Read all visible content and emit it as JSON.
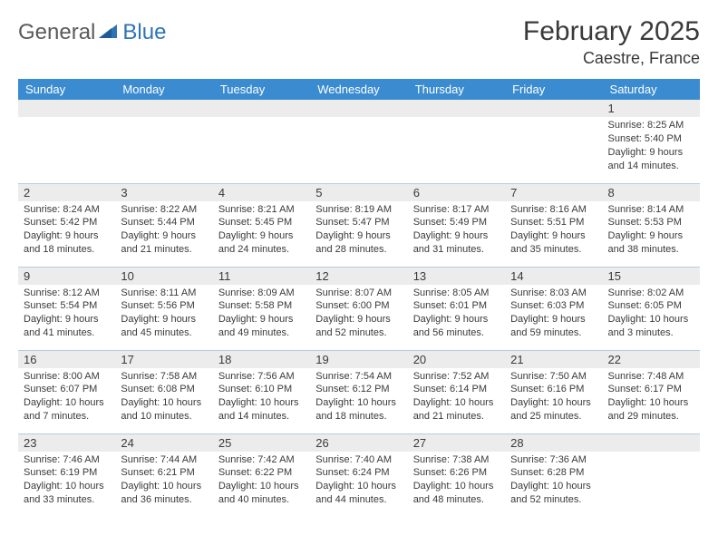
{
  "logo": {
    "part1": "General",
    "part2": "Blue"
  },
  "title": "February 2025",
  "location": "Caestre, France",
  "colors": {
    "header_bg": "#3b8bd0",
    "header_text": "#ffffff",
    "daynum_bg": "#ececec",
    "border": "#b8cce0",
    "logo_gray": "#5a5a5a",
    "logo_blue": "#2e74b5"
  },
  "weekdays": [
    "Sunday",
    "Monday",
    "Tuesday",
    "Wednesday",
    "Thursday",
    "Friday",
    "Saturday"
  ],
  "weeks": [
    [
      {
        "n": "",
        "s": ""
      },
      {
        "n": "",
        "s": ""
      },
      {
        "n": "",
        "s": ""
      },
      {
        "n": "",
        "s": ""
      },
      {
        "n": "",
        "s": ""
      },
      {
        "n": "",
        "s": ""
      },
      {
        "n": "1",
        "s": "Sunrise: 8:25 AM\nSunset: 5:40 PM\nDaylight: 9 hours and 14 minutes."
      }
    ],
    [
      {
        "n": "2",
        "s": "Sunrise: 8:24 AM\nSunset: 5:42 PM\nDaylight: 9 hours and 18 minutes."
      },
      {
        "n": "3",
        "s": "Sunrise: 8:22 AM\nSunset: 5:44 PM\nDaylight: 9 hours and 21 minutes."
      },
      {
        "n": "4",
        "s": "Sunrise: 8:21 AM\nSunset: 5:45 PM\nDaylight: 9 hours and 24 minutes."
      },
      {
        "n": "5",
        "s": "Sunrise: 8:19 AM\nSunset: 5:47 PM\nDaylight: 9 hours and 28 minutes."
      },
      {
        "n": "6",
        "s": "Sunrise: 8:17 AM\nSunset: 5:49 PM\nDaylight: 9 hours and 31 minutes."
      },
      {
        "n": "7",
        "s": "Sunrise: 8:16 AM\nSunset: 5:51 PM\nDaylight: 9 hours and 35 minutes."
      },
      {
        "n": "8",
        "s": "Sunrise: 8:14 AM\nSunset: 5:53 PM\nDaylight: 9 hours and 38 minutes."
      }
    ],
    [
      {
        "n": "9",
        "s": "Sunrise: 8:12 AM\nSunset: 5:54 PM\nDaylight: 9 hours and 41 minutes."
      },
      {
        "n": "10",
        "s": "Sunrise: 8:11 AM\nSunset: 5:56 PM\nDaylight: 9 hours and 45 minutes."
      },
      {
        "n": "11",
        "s": "Sunrise: 8:09 AM\nSunset: 5:58 PM\nDaylight: 9 hours and 49 minutes."
      },
      {
        "n": "12",
        "s": "Sunrise: 8:07 AM\nSunset: 6:00 PM\nDaylight: 9 hours and 52 minutes."
      },
      {
        "n": "13",
        "s": "Sunrise: 8:05 AM\nSunset: 6:01 PM\nDaylight: 9 hours and 56 minutes."
      },
      {
        "n": "14",
        "s": "Sunrise: 8:03 AM\nSunset: 6:03 PM\nDaylight: 9 hours and 59 minutes."
      },
      {
        "n": "15",
        "s": "Sunrise: 8:02 AM\nSunset: 6:05 PM\nDaylight: 10 hours and 3 minutes."
      }
    ],
    [
      {
        "n": "16",
        "s": "Sunrise: 8:00 AM\nSunset: 6:07 PM\nDaylight: 10 hours and 7 minutes."
      },
      {
        "n": "17",
        "s": "Sunrise: 7:58 AM\nSunset: 6:08 PM\nDaylight: 10 hours and 10 minutes."
      },
      {
        "n": "18",
        "s": "Sunrise: 7:56 AM\nSunset: 6:10 PM\nDaylight: 10 hours and 14 minutes."
      },
      {
        "n": "19",
        "s": "Sunrise: 7:54 AM\nSunset: 6:12 PM\nDaylight: 10 hours and 18 minutes."
      },
      {
        "n": "20",
        "s": "Sunrise: 7:52 AM\nSunset: 6:14 PM\nDaylight: 10 hours and 21 minutes."
      },
      {
        "n": "21",
        "s": "Sunrise: 7:50 AM\nSunset: 6:16 PM\nDaylight: 10 hours and 25 minutes."
      },
      {
        "n": "22",
        "s": "Sunrise: 7:48 AM\nSunset: 6:17 PM\nDaylight: 10 hours and 29 minutes."
      }
    ],
    [
      {
        "n": "23",
        "s": "Sunrise: 7:46 AM\nSunset: 6:19 PM\nDaylight: 10 hours and 33 minutes."
      },
      {
        "n": "24",
        "s": "Sunrise: 7:44 AM\nSunset: 6:21 PM\nDaylight: 10 hours and 36 minutes."
      },
      {
        "n": "25",
        "s": "Sunrise: 7:42 AM\nSunset: 6:22 PM\nDaylight: 10 hours and 40 minutes."
      },
      {
        "n": "26",
        "s": "Sunrise: 7:40 AM\nSunset: 6:24 PM\nDaylight: 10 hours and 44 minutes."
      },
      {
        "n": "27",
        "s": "Sunrise: 7:38 AM\nSunset: 6:26 PM\nDaylight: 10 hours and 48 minutes."
      },
      {
        "n": "28",
        "s": "Sunrise: 7:36 AM\nSunset: 6:28 PM\nDaylight: 10 hours and 52 minutes."
      },
      {
        "n": "",
        "s": ""
      }
    ]
  ]
}
